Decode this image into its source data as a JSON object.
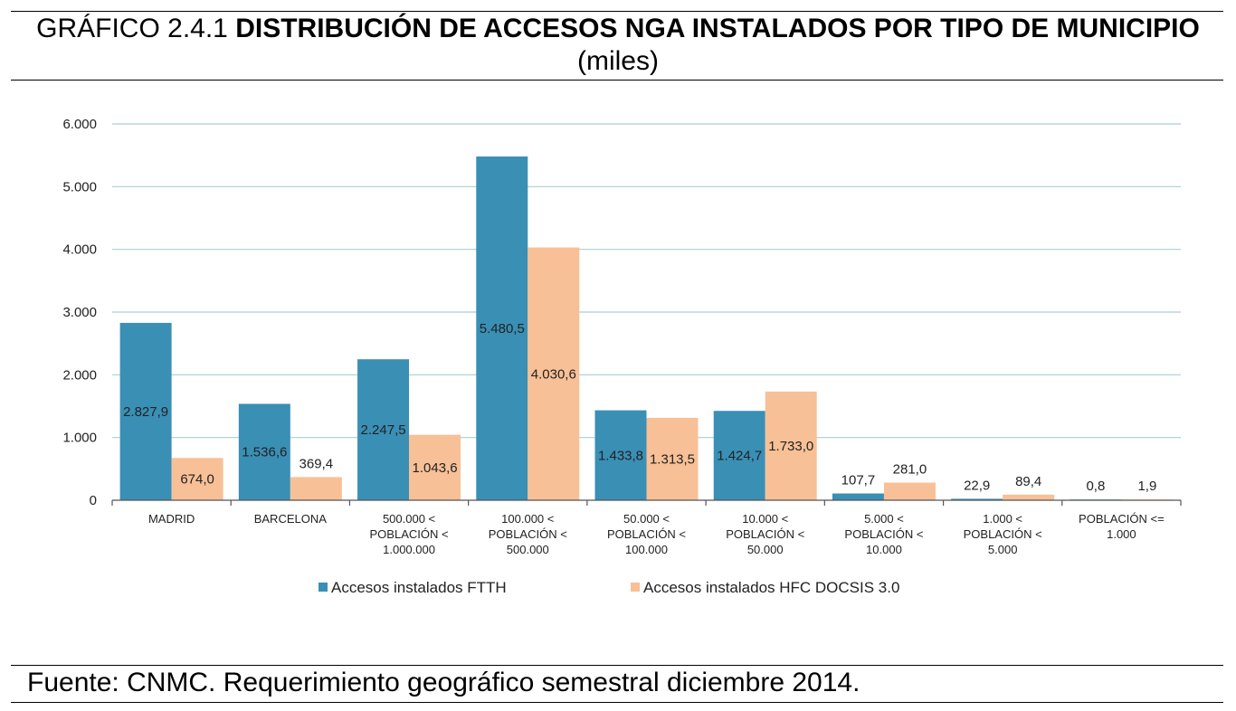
{
  "header": {
    "prefix": "GRÁFICO 2.4.1",
    "title_bold": "DISTRIBUCIÓN DE ACCESOS NGA INSTALADOS POR TIPO DE MUNICIPIO",
    "unit": "(miles)"
  },
  "footer": {
    "source": "Fuente: CNMC. Requerimiento geográfico semestral diciembre 2014."
  },
  "chart_data": {
    "type": "bar",
    "categories": [
      [
        "MADRID"
      ],
      [
        "BARCELONA"
      ],
      [
        "500.000 <",
        "POBLACIÓN <",
        "1.000.000"
      ],
      [
        "100.000 <",
        "POBLACIÓN <",
        "500.000"
      ],
      [
        "50.000 <",
        "POBLACIÓN <",
        "100.000"
      ],
      [
        "10.000 <",
        "POBLACIÓN <",
        "50.000"
      ],
      [
        "5.000 <",
        "POBLACIÓN <",
        "10.000"
      ],
      [
        "1.000 <",
        "POBLACIÓN <",
        "5.000"
      ],
      [
        "POBLACIÓN <=",
        "1.000"
      ]
    ],
    "series": [
      {
        "name": "Accesos instalados FTTH",
        "color": "#3a8fb5",
        "values": [
          2827.9,
          1536.6,
          2247.5,
          5480.5,
          1433.8,
          1424.7,
          107.7,
          22.9,
          0.8
        ],
        "labels": [
          "2.827,9",
          "1.536,6",
          "2.247,5",
          "5.480,5",
          "1.433,8",
          "1.424,7",
          "107,7",
          "22,9",
          "0,8"
        ]
      },
      {
        "name": "Accesos instalados HFC DOCSIS 3.0",
        "color": "#f8c097",
        "values": [
          674.0,
          369.4,
          1043.6,
          4030.6,
          1313.5,
          1733.0,
          281.0,
          89.4,
          1.9
        ],
        "labels": [
          "674,0",
          "369,4",
          "1.043,6",
          "4.030,6",
          "1.313,5",
          "1.733,0",
          "281,0",
          "89,4",
          "1,9"
        ]
      }
    ],
    "yticks": [
      0,
      1000,
      2000,
      3000,
      4000,
      5000,
      6000
    ],
    "ytick_labels": [
      "0",
      "1.000",
      "2.000",
      "3.000",
      "4.000",
      "5.000",
      "6.000"
    ],
    "ylim": [
      0,
      6000
    ],
    "grid": true,
    "gridline_color": "#a9cfd3",
    "legend_position": "bottom"
  }
}
